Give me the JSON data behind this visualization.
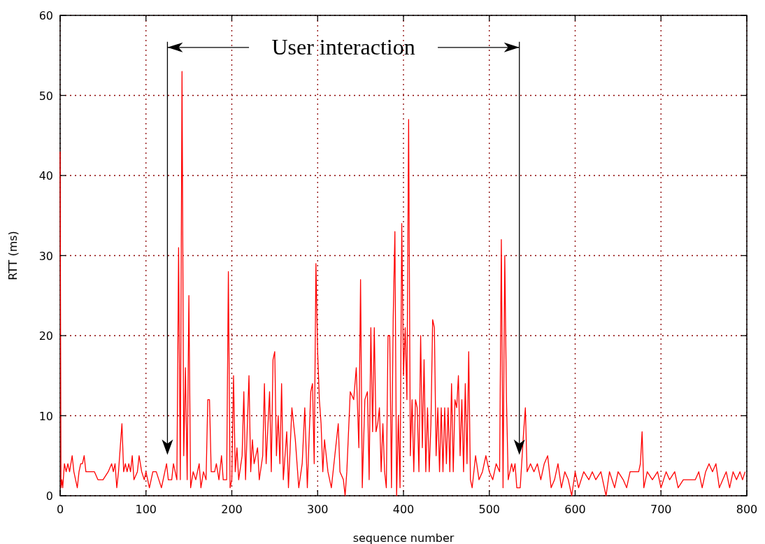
{
  "chart_data": {
    "type": "line",
    "xlabel": "sequence number",
    "ylabel": "RTT (ms)",
    "xlim": [
      0,
      800
    ],
    "ylim": [
      0,
      60
    ],
    "xticks": [
      0,
      100,
      200,
      300,
      400,
      500,
      600,
      700,
      800
    ],
    "yticks": [
      0,
      10,
      20,
      30,
      40,
      50,
      60
    ],
    "grid": true,
    "marker": "none",
    "line_style": "solid",
    "ref_lines": [
      {
        "axis": "x",
        "value": 125,
        "color": "#000000"
      },
      {
        "axis": "x",
        "value": 535,
        "color": "#000000"
      }
    ],
    "annotations": [
      {
        "text": "User interaction",
        "x": 125,
        "y": 56
      }
    ],
    "series": [
      {
        "color": "#ff0000",
        "x": [
          0,
          1,
          2,
          3,
          5,
          7,
          9,
          11,
          14,
          16,
          18,
          20,
          22,
          24,
          26,
          28,
          30,
          36,
          40,
          44,
          50,
          56,
          60,
          62,
          64,
          66,
          68,
          70,
          72,
          74,
          76,
          78,
          80,
          82,
          84,
          86,
          90,
          92,
          95,
          98,
          100,
          104,
          108,
          112,
          115,
          118,
          122,
          124,
          126,
          130,
          132,
          134,
          136,
          138,
          140,
          142,
          144,
          146,
          148,
          150,
          152,
          155,
          158,
          162,
          164,
          167,
          170,
          172,
          174,
          176,
          180,
          182,
          185,
          188,
          190,
          194,
          196,
          198,
          200,
          202,
          204,
          206,
          208,
          212,
          214,
          216,
          220,
          222,
          224,
          226,
          230,
          232,
          236,
          238,
          240,
          244,
          246,
          248,
          250,
          252,
          254,
          256,
          258,
          260,
          264,
          266,
          270,
          274,
          278,
          282,
          285,
          288,
          292,
          294,
          296,
          298,
          300,
          302,
          304,
          306,
          308,
          312,
          316,
          320,
          324,
          326,
          330,
          332,
          334,
          338,
          342,
          345,
          348,
          350,
          352,
          355,
          358,
          360,
          362,
          364,
          366,
          368,
          370,
          372,
          374,
          376,
          378,
          380,
          382,
          384,
          386,
          388,
          390,
          392,
          394,
          396,
          398,
          400,
          402,
          404,
          406,
          408,
          410,
          412,
          414,
          416,
          418,
          420,
          422,
          424,
          426,
          428,
          430,
          432,
          434,
          436,
          438,
          440,
          442,
          444,
          446,
          448,
          450,
          452,
          454,
          456,
          458,
          460,
          462,
          464,
          466,
          468,
          470,
          472,
          474,
          476,
          478,
          480,
          484,
          488,
          492,
          496,
          500,
          504,
          508,
          512,
          514,
          516,
          518,
          520,
          522,
          526,
          528,
          530,
          532,
          536,
          540,
          542,
          544,
          548,
          552,
          556,
          560,
          564,
          568,
          572,
          576,
          580,
          584,
          588,
          592,
          596,
          600,
          604,
          610,
          616,
          620,
          624,
          630,
          634,
          636,
          640,
          646,
          650,
          656,
          660,
          664,
          670,
          674,
          676,
          678,
          680,
          684,
          690,
          696,
          700,
          706,
          710,
          716,
          720,
          726,
          740,
          744,
          748,
          752,
          756,
          760,
          764,
          768,
          772,
          776,
          780,
          784,
          788,
          792,
          795,
          798
        ],
        "values": [
          43,
          1,
          2,
          1,
          4,
          3,
          4,
          3,
          5,
          3,
          2,
          1,
          3,
          4,
          4,
          5,
          3,
          3,
          3,
          2,
          2,
          3,
          4,
          3,
          4,
          1,
          3,
          6,
          9,
          3,
          4,
          3,
          4,
          3,
          5,
          2,
          3,
          5,
          3,
          2,
          3,
          1,
          3,
          3,
          2,
          1,
          3,
          4,
          2,
          2,
          4,
          3,
          2,
          31,
          2,
          53,
          5,
          16,
          2,
          25,
          1,
          3,
          2,
          4,
          1,
          3,
          2,
          12,
          12,
          3,
          3,
          4,
          2,
          5,
          2,
          2,
          28,
          1,
          2,
          15,
          3,
          6,
          2,
          5,
          13,
          2,
          15,
          3,
          7,
          4,
          6,
          2,
          5,
          14,
          4,
          13,
          3,
          17,
          18,
          5,
          10,
          4,
          14,
          2,
          8,
          1,
          11,
          7,
          1,
          4,
          11,
          1,
          13,
          14,
          4,
          29,
          18,
          12,
          9,
          3,
          7,
          3,
          1,
          5,
          9,
          3,
          2,
          0,
          3,
          13,
          12,
          16,
          6,
          27,
          1,
          12,
          13,
          2,
          21,
          8,
          21,
          8,
          9,
          11,
          3,
          9,
          3,
          1,
          20,
          20,
          1,
          22,
          33,
          0,
          10,
          1,
          34,
          15,
          21,
          12,
          47,
          5,
          12,
          3,
          12,
          11,
          3,
          20,
          6,
          17,
          3,
          11,
          3,
          9,
          22,
          21,
          5,
          11,
          3,
          11,
          3,
          11,
          4,
          11,
          3,
          14,
          3,
          12,
          11,
          15,
          5,
          12,
          3,
          14,
          4,
          18,
          2,
          1,
          5,
          2,
          3,
          5,
          3,
          2,
          4,
          3,
          32,
          1,
          30,
          12,
          2,
          4,
          3,
          4,
          1,
          1,
          8,
          11,
          3,
          4,
          3,
          4,
          2,
          4,
          5,
          1,
          2,
          4,
          1,
          3,
          2,
          0,
          3,
          1,
          3,
          2,
          3,
          2,
          3,
          1,
          0,
          3,
          1,
          3,
          2,
          1,
          3,
          3,
          3,
          4,
          8,
          1,
          3,
          2,
          3,
          1,
          3,
          2,
          3,
          1,
          2,
          2,
          3,
          1,
          3,
          4,
          3,
          4,
          1,
          2,
          3,
          1,
          3,
          2,
          3,
          2,
          3
        ]
      }
    ]
  }
}
